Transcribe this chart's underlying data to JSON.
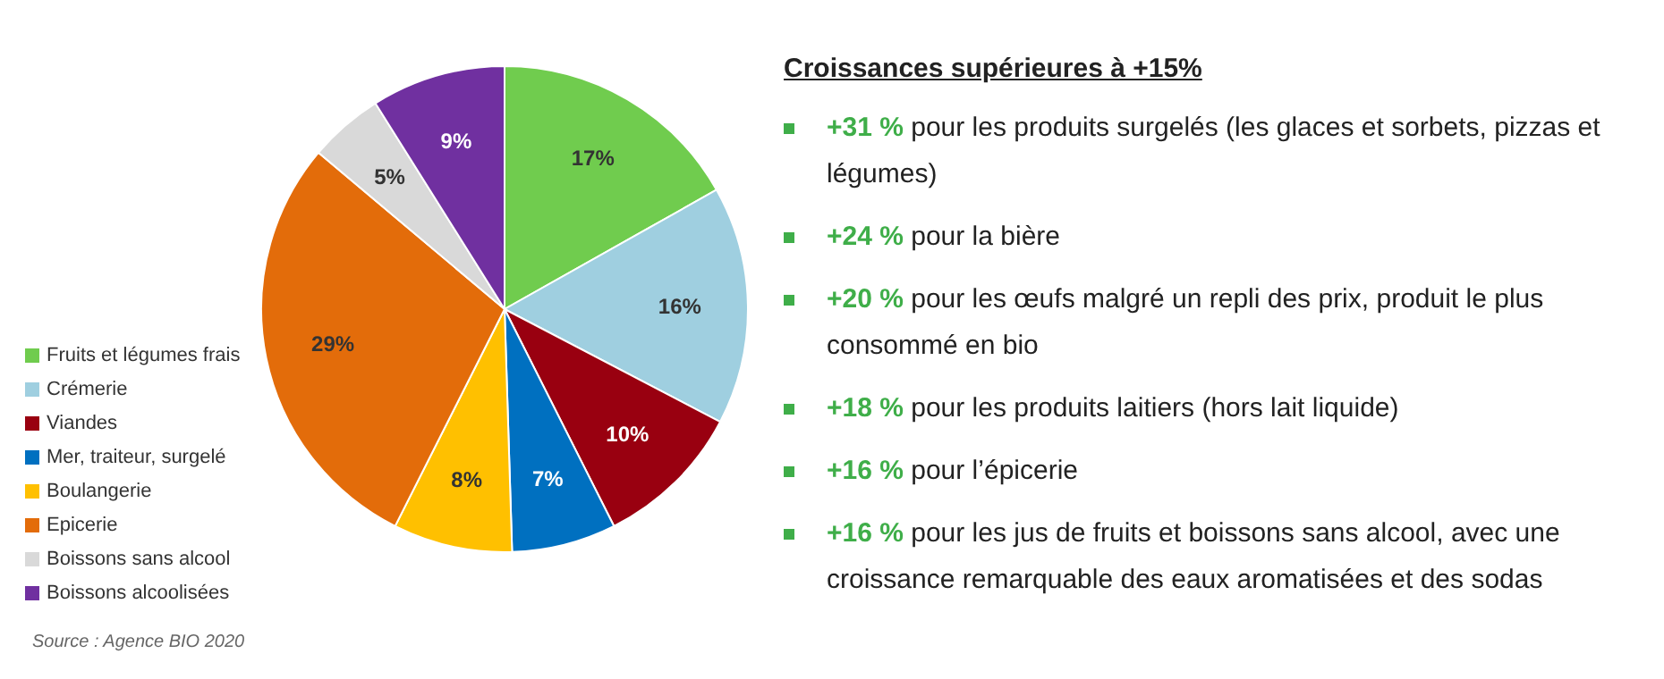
{
  "chart_data": [
    {
      "type": "pie",
      "categories": [
        "Fruits et légumes frais",
        "Crémerie",
        "Viandes",
        "Mer, traiteur, surgelé",
        "Boulangerie",
        "Epicerie",
        "Boissons sans alcool",
        "Boissons alcoolisées"
      ],
      "values": [
        17,
        16,
        10,
        7,
        8,
        29,
        5,
        9
      ],
      "colors": [
        "#70cc4e",
        "#9fcfe0",
        "#990010",
        "#0070c0",
        "#ffc000",
        "#e36c0a",
        "#d9d9d9",
        "#7030a0"
      ],
      "value_labels": [
        "17%",
        "16%",
        "10%",
        "7%",
        "8%",
        "29%",
        "5%",
        "9%"
      ],
      "legend": "bottom left",
      "annotations": [
        "Source : Agence BIO 2020"
      ]
    },
    {
      "type": "other",
      "title": "Croissances supérieures à +15%",
      "annotations": [
        "+31 % pour les produits surgelés (les glaces et sorbets, pizzas et légumes)",
        "+24 % pour la bière",
        "+20 % pour les œufs malgré un repli des prix, produit le plus consommé en bio",
        "+18 % pour les produits laitiers (hors lait liquide)",
        "+16 % pour l’épicerie",
        "+16 % pour les jus de fruits et boissons sans alcool, avec une croissance remarquable des eaux aromatisées et des sodas"
      ]
    }
  ]
}
